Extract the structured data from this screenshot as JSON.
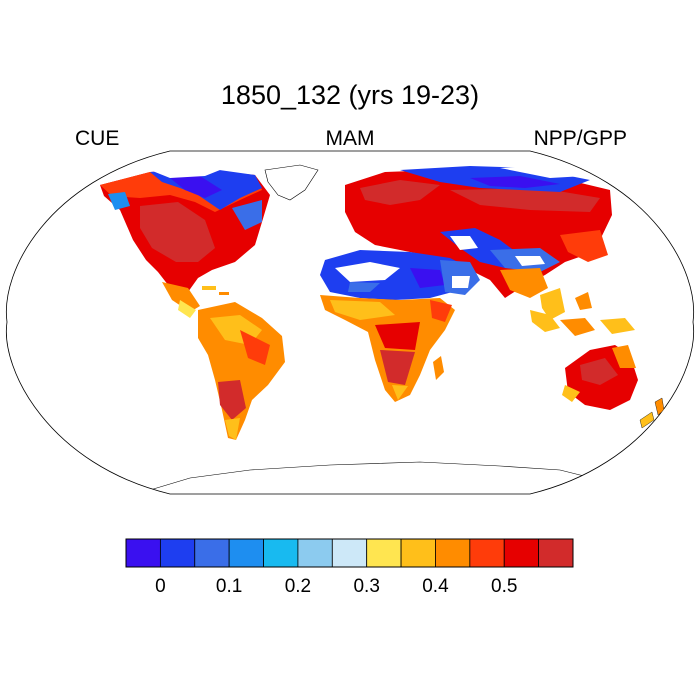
{
  "title": "1850_132 (yrs 19-23)",
  "left_label": "CUE",
  "center_label": "MAM",
  "right_label": "NPP/GPP",
  "colorbar": {
    "colors": [
      "#3a10f0",
      "#1e3ef0",
      "#3a6ee8",
      "#1e8ef0",
      "#18baf0",
      "#8ccbef",
      "#cde8f8",
      "#ffe550",
      "#ffbf1a",
      "#ff8c00",
      "#ff3c0a",
      "#e60000",
      "#d22b2b"
    ],
    "ticks": [
      "0",
      "0.1",
      "0.2",
      "0.3",
      "0.4",
      "0.5"
    ]
  }
}
